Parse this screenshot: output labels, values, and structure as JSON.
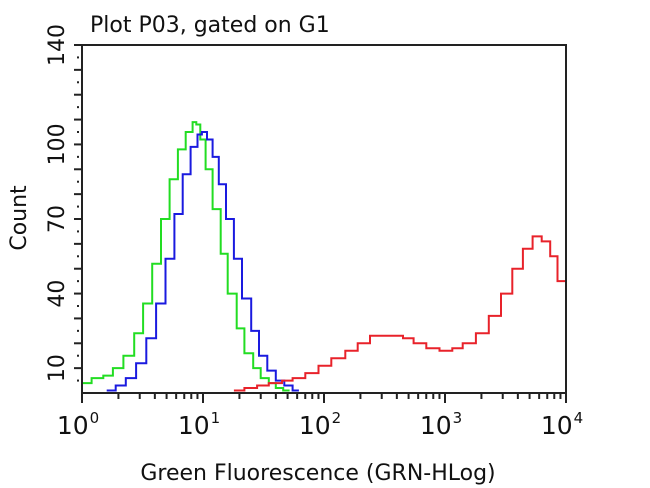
{
  "chart_data": {
    "type": "line",
    "title": "Plot P03, gated on G1",
    "xlabel": "Green Fluorescence (GRN-HLog)",
    "ylabel": "Count",
    "xscale": "log",
    "xlim": [
      1,
      10000
    ],
    "ylim": [
      0,
      140
    ],
    "x_tick_labels": [
      {
        "base": "10",
        "exp": "0",
        "value": 1
      },
      {
        "base": "10",
        "exp": "1",
        "value": 10
      },
      {
        "base": "10",
        "exp": "2",
        "value": 100
      },
      {
        "base": "10",
        "exp": "3",
        "value": 1000
      },
      {
        "base": "10",
        "exp": "4",
        "value": 10000
      }
    ],
    "y_tick_labels": [
      "10",
      "40",
      "70",
      "100",
      "140"
    ],
    "y_tick_values": [
      10,
      40,
      70,
      100,
      140
    ],
    "grid": false,
    "legend": null,
    "series": [
      {
        "name": "green",
        "color": "#22dd22",
        "x": [
          1,
          1.2,
          1.5,
          1.8,
          2.2,
          2.7,
          3.2,
          3.8,
          4.5,
          5.3,
          6.2,
          7.2,
          8.2,
          8.8,
          9.5,
          10.5,
          12,
          14,
          16,
          19,
          22,
          26,
          30,
          35,
          40,
          46,
          52
        ],
        "y": [
          4,
          6,
          7,
          10,
          15,
          24,
          36,
          52,
          70,
          86,
          98,
          105,
          109,
          108,
          102,
          90,
          74,
          56,
          40,
          26,
          16,
          10,
          6,
          4,
          2,
          1,
          1
        ]
      },
      {
        "name": "blue",
        "color": "#1a1adf",
        "x": [
          1.6,
          1.9,
          2.3,
          2.8,
          3.4,
          4.1,
          4.9,
          5.8,
          6.8,
          7.9,
          9.0,
          9.8,
          10.8,
          12,
          13.5,
          15.5,
          18,
          21,
          25,
          29,
          34,
          40,
          47,
          55,
          62
        ],
        "y": [
          1,
          3,
          6,
          12,
          22,
          36,
          54,
          72,
          88,
          99,
          104,
          105,
          102,
          95,
          84,
          70,
          54,
          38,
          25,
          15,
          9,
          5,
          3,
          1,
          1
        ]
      },
      {
        "name": "red",
        "color": "#e8222a",
        "x": [
          18,
          22,
          28,
          35,
          45,
          55,
          70,
          90,
          115,
          150,
          190,
          240,
          300,
          370,
          450,
          550,
          700,
          900,
          1150,
          1400,
          1800,
          2300,
          2900,
          3600,
          4400,
          5300,
          6300,
          7400,
          8500,
          10000
        ],
        "y": [
          1,
          2,
          3,
          4,
          5,
          6,
          8,
          11,
          14,
          17,
          20,
          23,
          23,
          23,
          22,
          20,
          18,
          17,
          18,
          20,
          24,
          31,
          40,
          50,
          58,
          63,
          61,
          55,
          45,
          34
        ]
      }
    ]
  }
}
